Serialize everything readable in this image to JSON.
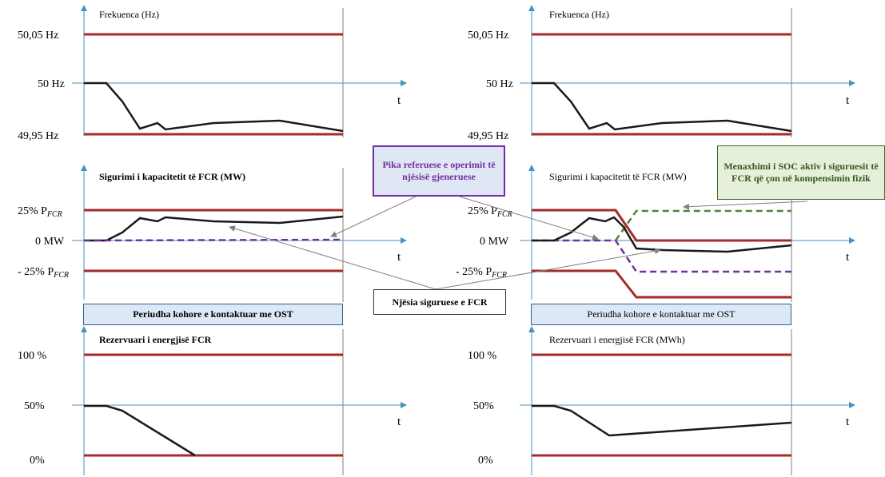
{
  "left": {
    "freq": {
      "title": "Frekuenca (Hz)",
      "upper": "50,05 Hz",
      "mid": "50 Hz",
      "lower": "49,95 Hz",
      "t": "t"
    },
    "cap": {
      "title": "Sigurimi i kapacitetit të FCR (MW)",
      "upper": "25% P",
      "mid": "0 MW",
      "lower": "- 25% P",
      "sub": "FCR",
      "t": "t"
    },
    "period": "Periudha kohore e kontaktuar me OST",
    "res": {
      "title": "Rezervuari i energjisë FCR",
      "upper": "100 %",
      "mid": "50%",
      "lower": "0%",
      "t": "t"
    }
  },
  "right": {
    "freq": {
      "title": "Frekuenca (Hz)",
      "upper": "50,05 Hz",
      "mid": "50 Hz",
      "lower": "49,95 Hz",
      "t": "t"
    },
    "cap": {
      "title": "Sigurimi i kapacitetit të FCR (MW)",
      "upper": "25% P",
      "mid": "0 MW",
      "lower": "- 25% P",
      "sub": "FCR",
      "t": "t"
    },
    "period": "Periudha kohore e kontaktuar me OST",
    "res": {
      "title": "Rezervuari i energjisë FCR (MWh)",
      "upper": "100 %",
      "mid": "50%",
      "lower": "0%",
      "t": "t"
    }
  },
  "callouts": {
    "reference": "Pika referuese e operimit të njësisë gjeneruese",
    "soc": "Menaxhimi i SOC aktiv i siguruesit të FCR që çon në kompensimin fizik",
    "unit": "Njësia siguruese e FCR"
  },
  "colors": {
    "limit": "#a52a2a",
    "signal": "#1a1a1a",
    "axis": "#4a90c2",
    "purple": "#7030a0",
    "green": "#548235"
  }
}
